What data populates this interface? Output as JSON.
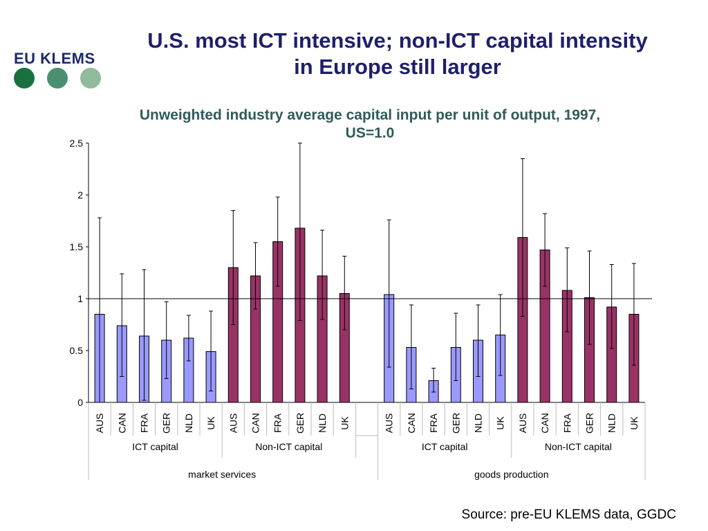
{
  "title": "U.S. most ICT intensive; non-ICT capital intensity in Europe still larger",
  "title_line1": "U.S. most ICT intensive; non-ICT capital intensity",
  "title_line2": "in Europe still larger",
  "logo": {
    "text": "EU KLEMS",
    "dot_colors": [
      "#1a7040",
      "#4a9070",
      "#90bb9d"
    ]
  },
  "source": "Source: pre-EU KLEMS data, GGDC",
  "colors": {
    "ict": "#9999ff",
    "nonict": "#993366"
  },
  "chart_data": {
    "type": "bar",
    "title": "Unweighted industry average capital input per unit of output, 1997, US=1.0",
    "title_line1": "Unweighted industry average capital input per unit of output, 1997,",
    "title_line2": "US=1.0",
    "ylim": [
      0,
      2.5
    ],
    "yticks": [
      "0",
      "0.5",
      "1",
      "1.5",
      "2",
      "2.5"
    ],
    "reference_line": 1.0,
    "sectors": [
      {
        "name": "market services",
        "groups": [
          {
            "name": "ICT capital",
            "kind": "ict",
            "categories": [
              "AUS",
              "CAN",
              "FRA",
              "GER",
              "NLD",
              "UK"
            ],
            "values": [
              0.85,
              0.74,
              0.64,
              0.6,
              0.62,
              0.49
            ],
            "err_low": [
              0.0,
              0.25,
              0.02,
              0.23,
              0.4,
              0.11
            ],
            "err_high": [
              1.78,
              1.24,
              1.28,
              0.97,
              0.84,
              0.88
            ]
          },
          {
            "name": "Non-ICT capital",
            "kind": "nonict",
            "categories": [
              "AUS",
              "CAN",
              "FRA",
              "GER",
              "NLD",
              "UK"
            ],
            "values": [
              1.3,
              1.22,
              1.55,
              1.68,
              1.22,
              1.05
            ],
            "err_low": [
              0.75,
              0.9,
              1.12,
              0.79,
              0.8,
              0.7
            ],
            "err_high": [
              1.85,
              1.54,
              1.98,
              2.5,
              1.66,
              1.41
            ]
          }
        ]
      },
      {
        "name": "goods production",
        "groups": [
          {
            "name": "ICT capital",
            "kind": "ict",
            "categories": [
              "AUS",
              "CAN",
              "FRA",
              "GER",
              "NLD",
              "UK"
            ],
            "values": [
              1.04,
              0.53,
              0.21,
              0.53,
              0.6,
              0.65
            ],
            "err_low": [
              0.34,
              0.13,
              0.1,
              0.21,
              0.25,
              0.26
            ],
            "err_high": [
              1.76,
              0.94,
              0.33,
              0.86,
              0.94,
              1.04
            ]
          },
          {
            "name": "Non-ICT capital",
            "kind": "nonict",
            "categories": [
              "AUS",
              "CAN",
              "FRA",
              "GER",
              "NLD",
              "UK"
            ],
            "values": [
              1.59,
              1.47,
              1.08,
              1.01,
              0.92,
              0.85
            ],
            "err_low": [
              0.83,
              1.12,
              0.68,
              0.56,
              0.52,
              0.36
            ],
            "err_high": [
              2.35,
              1.82,
              1.49,
              1.46,
              1.33,
              1.34
            ]
          }
        ]
      }
    ]
  }
}
